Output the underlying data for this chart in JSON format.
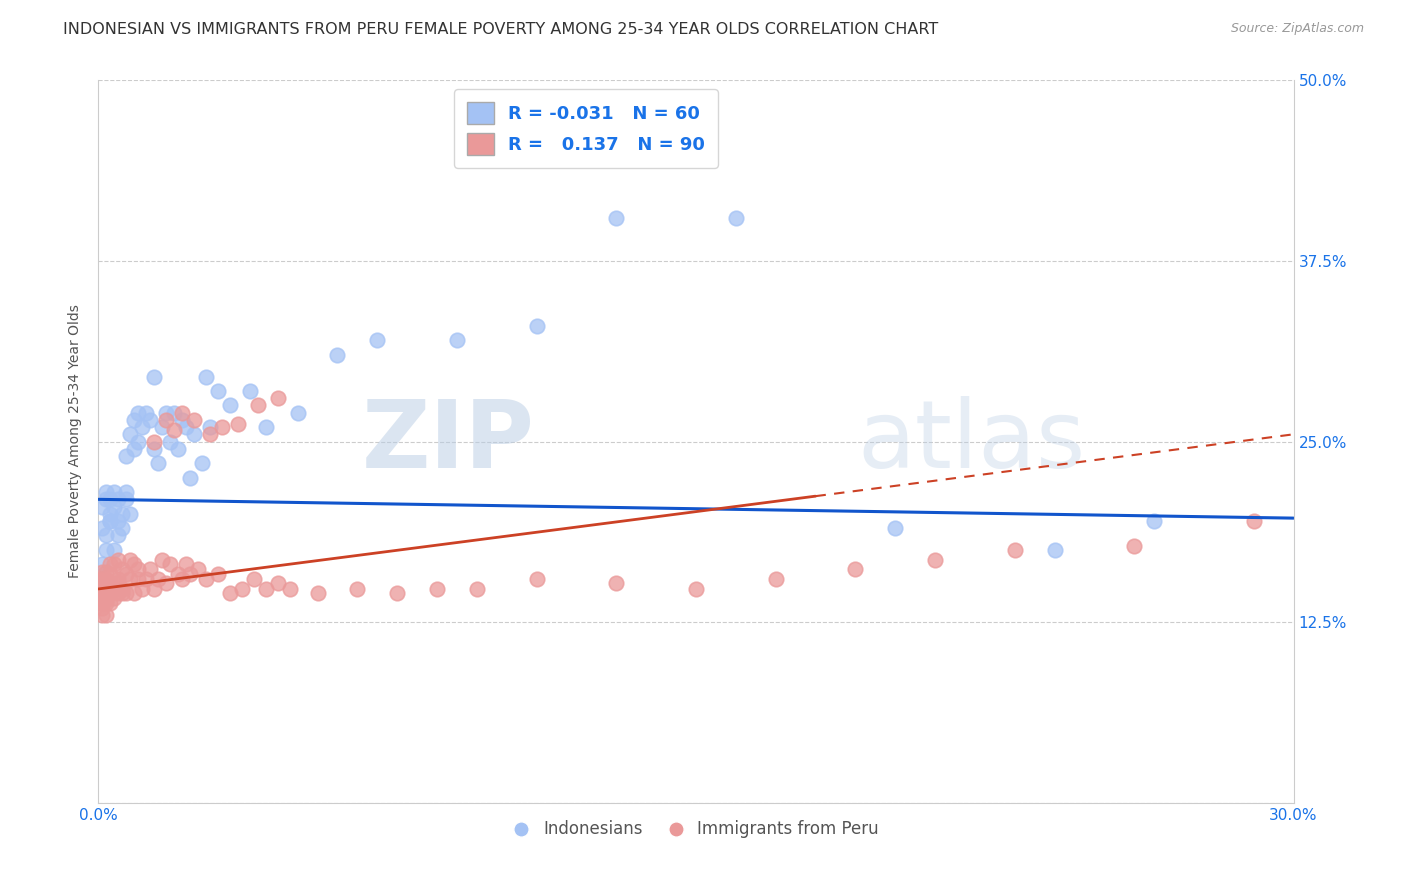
{
  "title": "INDONESIAN VS IMMIGRANTS FROM PERU FEMALE POVERTY AMONG 25-34 YEAR OLDS CORRELATION CHART",
  "source": "Source: ZipAtlas.com",
  "ylabel": "Female Poverty Among 25-34 Year Olds",
  "xlim": [
    0.0,
    0.3
  ],
  "ylim": [
    0.0,
    0.5
  ],
  "xticks": [
    0.0,
    0.05,
    0.1,
    0.15,
    0.2,
    0.25,
    0.3
  ],
  "xticklabels": [
    "0.0%",
    "",
    "",
    "",
    "",
    "",
    "30.0%"
  ],
  "yticks": [
    0.0,
    0.125,
    0.25,
    0.375,
    0.5
  ],
  "yticklabels": [
    "",
    "12.5%",
    "25.0%",
    "37.5%",
    "50.0%"
  ],
  "legend1_R": "-0.031",
  "legend1_N": "60",
  "legend2_R": "0.137",
  "legend2_N": "90",
  "blue_color": "#a4c2f4",
  "pink_color": "#ea9999",
  "blue_line_color": "#1155cc",
  "pink_line_color": "#cc4125",
  "watermark_zip": "ZIP",
  "watermark_atlas": "atlas",
  "indonesian_x": [
    0.001,
    0.001,
    0.001,
    0.002,
    0.002,
    0.002,
    0.002,
    0.003,
    0.003,
    0.003,
    0.003,
    0.004,
    0.004,
    0.004,
    0.005,
    0.005,
    0.005,
    0.006,
    0.006,
    0.007,
    0.007,
    0.007,
    0.008,
    0.008,
    0.009,
    0.009,
    0.01,
    0.01,
    0.011,
    0.012,
    0.013,
    0.014,
    0.014,
    0.015,
    0.016,
    0.017,
    0.018,
    0.019,
    0.02,
    0.021,
    0.022,
    0.023,
    0.024,
    0.026,
    0.027,
    0.028,
    0.03,
    0.033,
    0.038,
    0.042,
    0.05,
    0.06,
    0.07,
    0.09,
    0.11,
    0.13,
    0.16,
    0.2,
    0.24,
    0.265
  ],
  "indonesian_y": [
    0.165,
    0.19,
    0.205,
    0.175,
    0.185,
    0.21,
    0.215,
    0.195,
    0.2,
    0.21,
    0.195,
    0.175,
    0.205,
    0.215,
    0.195,
    0.185,
    0.21,
    0.2,
    0.19,
    0.21,
    0.215,
    0.24,
    0.2,
    0.255,
    0.245,
    0.265,
    0.25,
    0.27,
    0.26,
    0.27,
    0.265,
    0.245,
    0.295,
    0.235,
    0.26,
    0.27,
    0.25,
    0.27,
    0.245,
    0.265,
    0.26,
    0.225,
    0.255,
    0.235,
    0.295,
    0.26,
    0.285,
    0.275,
    0.285,
    0.26,
    0.27,
    0.31,
    0.32,
    0.32,
    0.33,
    0.405,
    0.405,
    0.19,
    0.175,
    0.195
  ],
  "peru_x": [
    0.001,
    0.001,
    0.001,
    0.001,
    0.001,
    0.001,
    0.001,
    0.001,
    0.001,
    0.001,
    0.001,
    0.002,
    0.002,
    0.002,
    0.002,
    0.002,
    0.002,
    0.002,
    0.002,
    0.002,
    0.003,
    0.003,
    0.003,
    0.003,
    0.003,
    0.003,
    0.004,
    0.004,
    0.004,
    0.004,
    0.005,
    0.005,
    0.005,
    0.005,
    0.006,
    0.006,
    0.006,
    0.007,
    0.007,
    0.008,
    0.008,
    0.009,
    0.009,
    0.01,
    0.01,
    0.011,
    0.012,
    0.013,
    0.014,
    0.015,
    0.016,
    0.017,
    0.018,
    0.02,
    0.021,
    0.022,
    0.023,
    0.025,
    0.027,
    0.03,
    0.033,
    0.036,
    0.039,
    0.042,
    0.045,
    0.048,
    0.055,
    0.065,
    0.075,
    0.085,
    0.095,
    0.11,
    0.13,
    0.15,
    0.17,
    0.19,
    0.21,
    0.23,
    0.26,
    0.29,
    0.014,
    0.017,
    0.019,
    0.021,
    0.024,
    0.028,
    0.031,
    0.035,
    0.04,
    0.045
  ],
  "peru_y": [
    0.155,
    0.148,
    0.14,
    0.16,
    0.145,
    0.15,
    0.135,
    0.13,
    0.142,
    0.155,
    0.138,
    0.148,
    0.142,
    0.155,
    0.138,
    0.13,
    0.15,
    0.145,
    0.16,
    0.14,
    0.152,
    0.145,
    0.138,
    0.165,
    0.148,
    0.158,
    0.142,
    0.152,
    0.165,
    0.148,
    0.145,
    0.155,
    0.168,
    0.152,
    0.145,
    0.162,
    0.148,
    0.158,
    0.145,
    0.168,
    0.155,
    0.145,
    0.165,
    0.155,
    0.162,
    0.148,
    0.155,
    0.162,
    0.148,
    0.155,
    0.168,
    0.152,
    0.165,
    0.158,
    0.155,
    0.165,
    0.158,
    0.162,
    0.155,
    0.158,
    0.145,
    0.148,
    0.155,
    0.148,
    0.152,
    0.148,
    0.145,
    0.148,
    0.145,
    0.148,
    0.148,
    0.155,
    0.152,
    0.148,
    0.155,
    0.162,
    0.168,
    0.175,
    0.178,
    0.195,
    0.25,
    0.265,
    0.258,
    0.27,
    0.265,
    0.255,
    0.26,
    0.262,
    0.275,
    0.28
  ]
}
